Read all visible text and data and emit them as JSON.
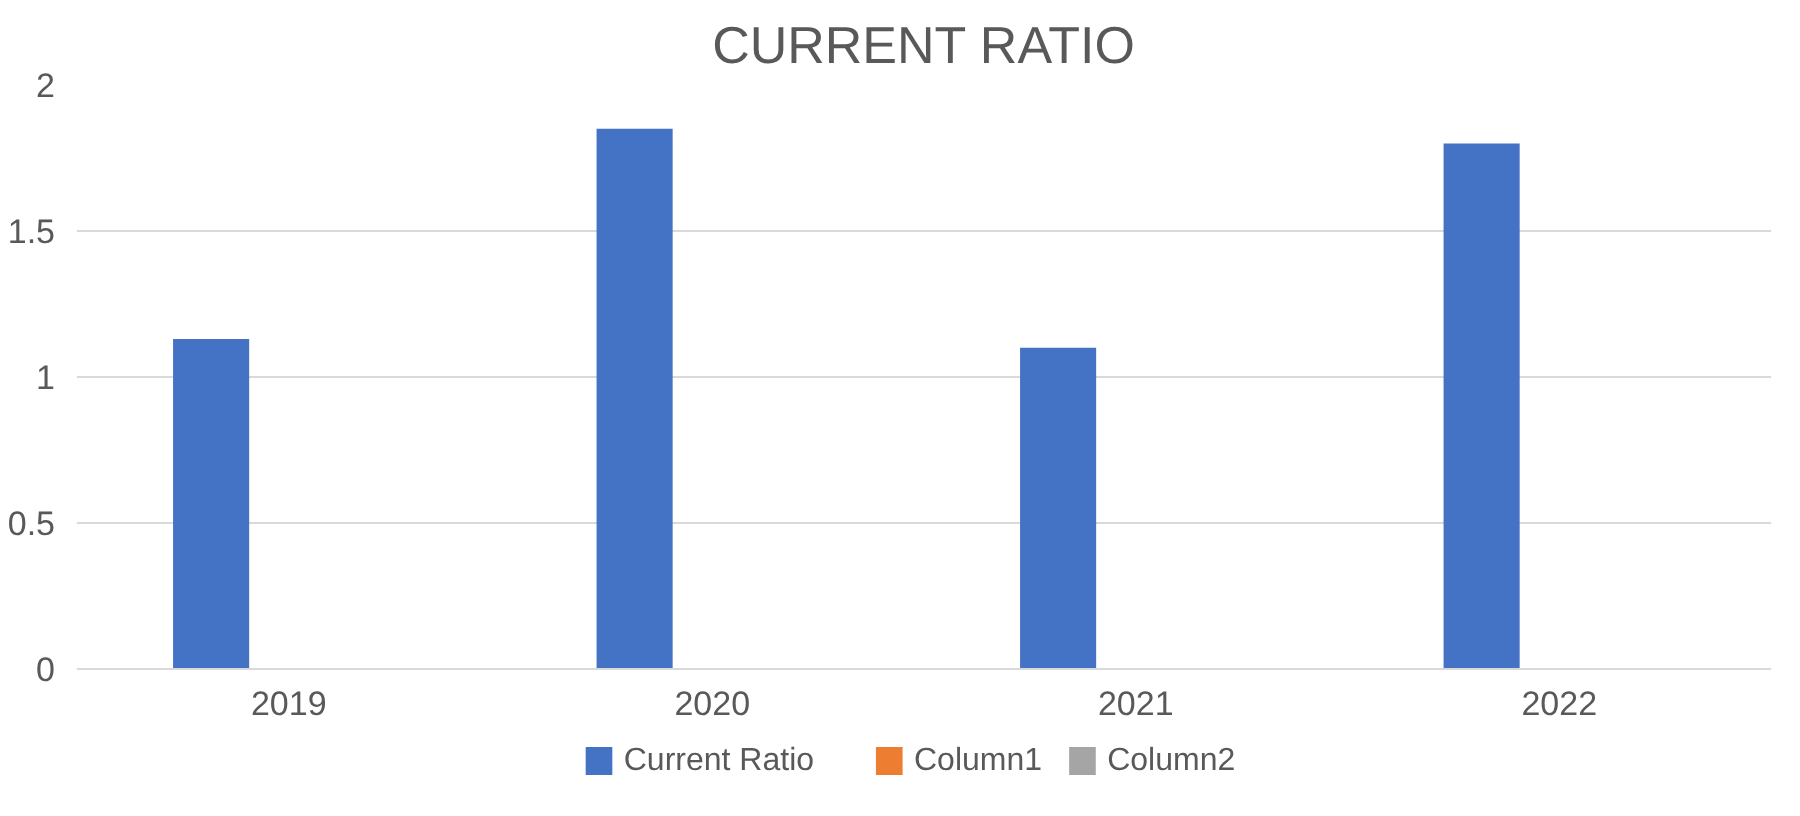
{
  "chart_data": {
    "type": "bar",
    "title": "CURRENT RATIO",
    "categories": [
      "2019",
      "2020",
      "2021",
      "2022"
    ],
    "series": [
      {
        "name": "Current Ratio",
        "color": "#4472c4",
        "values": [
          1.13,
          1.85,
          1.1,
          1.8
        ]
      },
      {
        "name": "Column1",
        "color": "#ed7d31",
        "values": [
          null,
          null,
          null,
          null
        ]
      },
      {
        "name": "Column2",
        "color": "#a5a5a5",
        "values": [
          null,
          null,
          null,
          null
        ]
      }
    ],
    "ylim": [
      0,
      2
    ],
    "yticks": [
      0,
      0.5,
      1,
      1.5,
      2
    ],
    "grid": "y",
    "legend": "bottom"
  }
}
